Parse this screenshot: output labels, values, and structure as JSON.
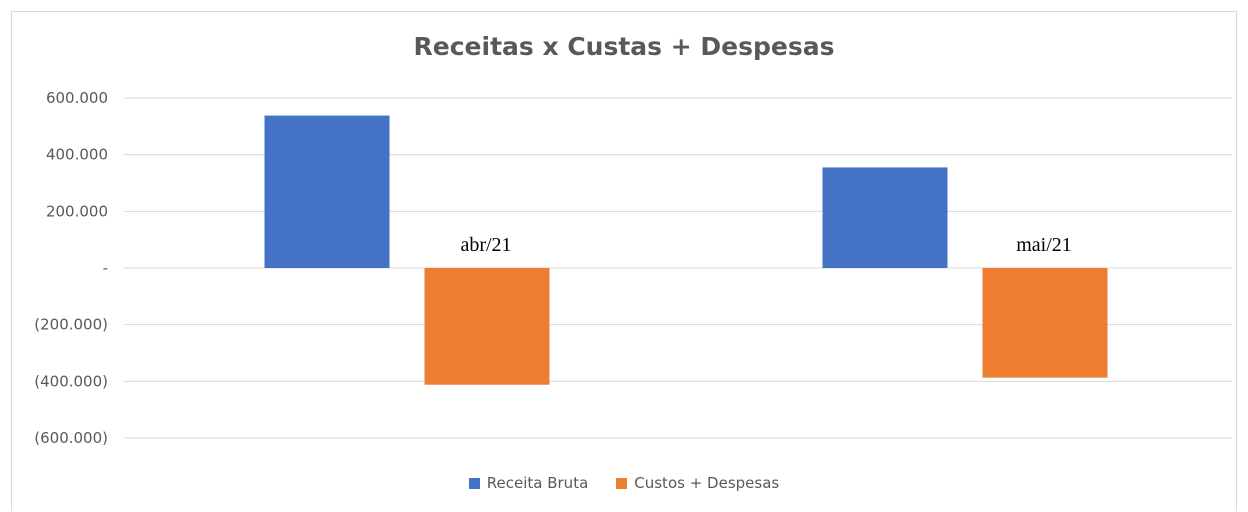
{
  "chart_data": {
    "type": "bar",
    "title": "Receitas x Custas + Despesas",
    "categories": [
      "abr/21",
      "mai/21"
    ],
    "series": [
      {
        "name": "Receita Bruta",
        "color": "#4472c4",
        "values": [
          538000,
          355000
        ]
      },
      {
        "name": "Custos + Despesas",
        "color": "#ed7d31",
        "values": [
          -412000,
          -387000
        ]
      }
    ],
    "ylim": [
      -600000,
      600000
    ],
    "ytick_values": [
      600000,
      400000,
      200000,
      0,
      -200000,
      -400000,
      -600000
    ],
    "ytick_labels": [
      "600.000",
      "400.000",
      "200.000",
      "-",
      "(200.000)",
      "(400.000)",
      "(600.000)"
    ],
    "grid": true,
    "legend_position": "bottom",
    "category_label_position": "at zero line"
  }
}
